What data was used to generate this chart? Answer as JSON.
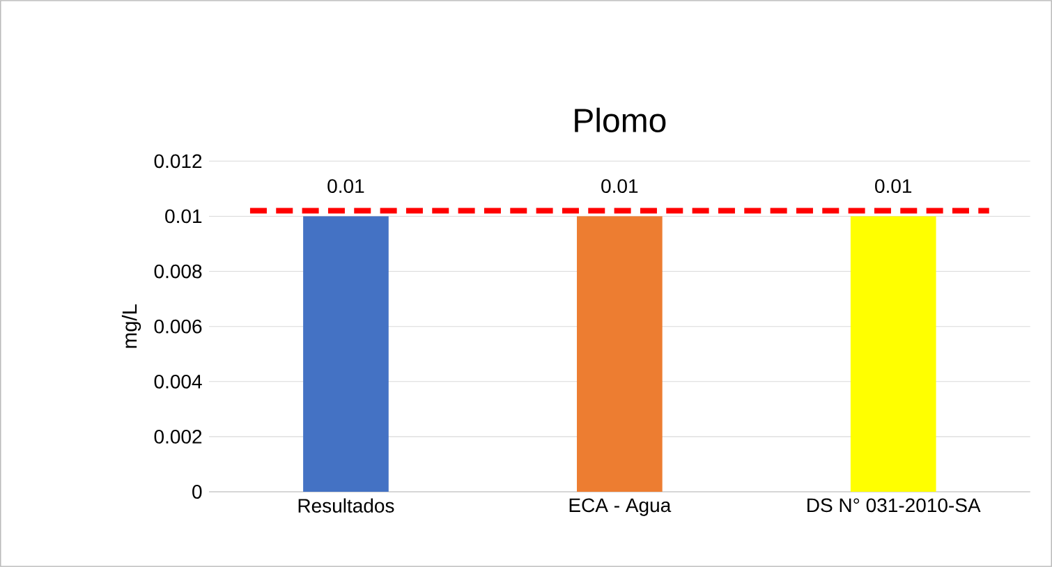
{
  "chart_data": {
    "type": "bar",
    "title": "Plomo",
    "ylabel": "mg/L",
    "categories": [
      "Resultados",
      "ECA - Agua",
      "DS N° 031-2010-SA"
    ],
    "values": [
      0.01,
      0.01,
      0.01
    ],
    "colors": [
      "#4472c4",
      "#ed7d31",
      "#ffff00"
    ],
    "value_labels": [
      "0.01",
      "0.01",
      "0.01"
    ],
    "ylim": [
      0,
      0.012
    ],
    "yticks": [
      0,
      0.002,
      0.004,
      0.006,
      0.008,
      0.01,
      0.012
    ],
    "grid": "y",
    "ref_lines": [
      {
        "axis": "y",
        "value": 0.0102,
        "color": "#ff0000",
        "line_style": "dashed"
      }
    ]
  }
}
